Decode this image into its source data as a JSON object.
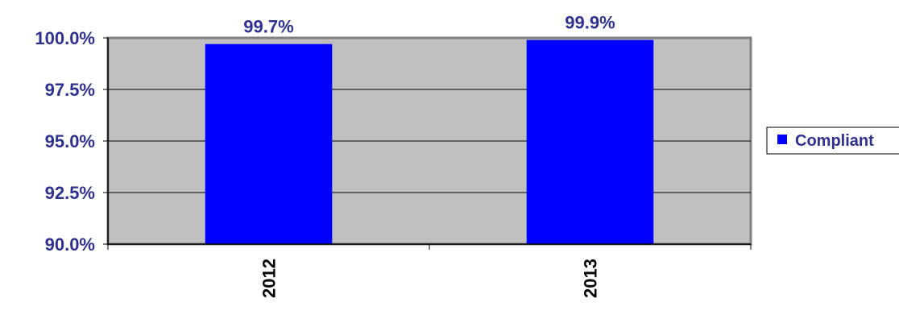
{
  "chart_data": {
    "type": "bar",
    "categories": [
      "2012",
      "2013"
    ],
    "series": [
      {
        "name": "Compliant",
        "values": [
          99.7,
          99.9
        ]
      }
    ],
    "data_labels": [
      "99.7%",
      "99.9%"
    ],
    "ylim": [
      90.0,
      100.0
    ],
    "yticks": [
      90.0,
      92.5,
      95.0,
      97.5,
      100.0
    ],
    "ytick_labels": [
      "90.0%",
      "92.5%",
      "95.0%",
      "97.5%",
      "100.0%"
    ],
    "title": "",
    "xlabel": "",
    "ylabel": "",
    "grid": "horizontal",
    "legend_position": "right",
    "colors": {
      "bar": "#0000ff",
      "plot_background": "#c0c0c0",
      "label_text": "#2e3192",
      "category_text": "#000000"
    }
  }
}
